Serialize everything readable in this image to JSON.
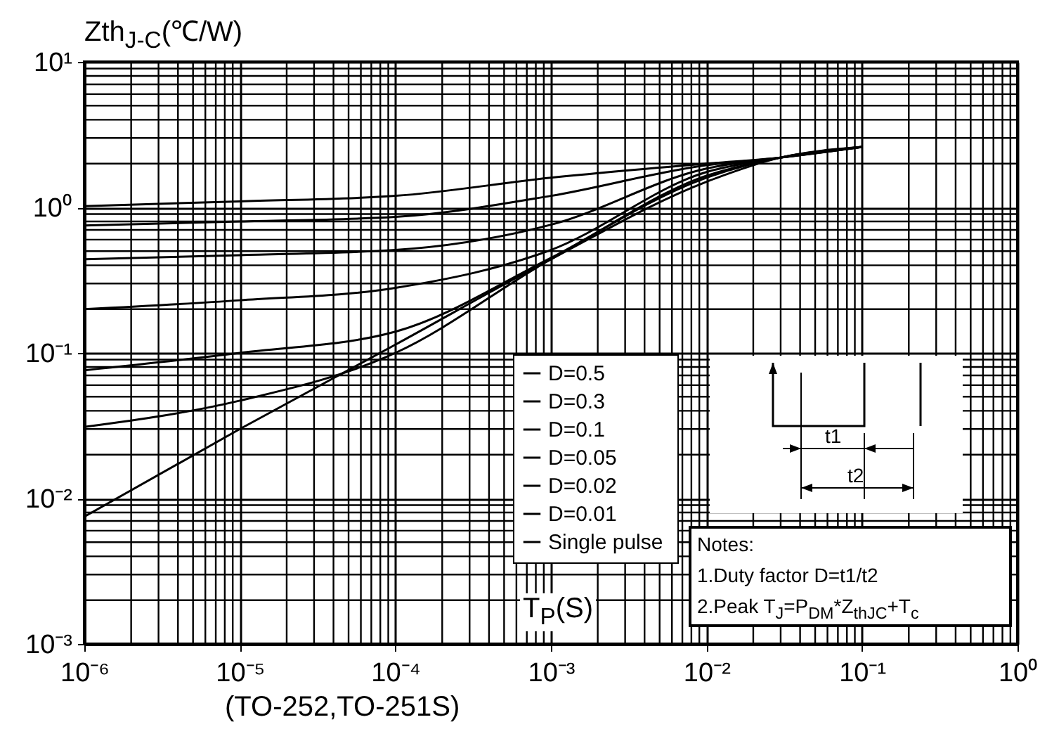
{
  "chart_data": {
    "type": "line",
    "ylabel": "Zth$_{J-C}$(℃/W)",
    "xlabel": "T$_{P}$(S)",
    "annotations": [
      "Notes:",
      "1.Duty factor D=t1/t2",
      "2.Peak  T$_{J}$=P$_{DM}$*Z$_{thJC}$+T$_{c}$",
      "t1",
      "t2",
      "(TO-252,TO-251S)"
    ],
    "log": "xy",
    "grid": true,
    "legend": "bottom",
    "line_style": "solid",
    "marker": "none",
    "xlim": [
      1e-06,
      1
    ],
    "ylim": [
      0.001,
      10
    ],
    "xticks": [
      {
        "value": 1e-06,
        "label": "10⁻⁶"
      },
      {
        "value": 1e-05,
        "label": "10⁻⁵"
      },
      {
        "value": 0.0001,
        "label": "10⁻⁴"
      },
      {
        "value": 0.001,
        "label": "10⁻³"
      },
      {
        "value": 0.01,
        "label": "10⁻²"
      },
      {
        "value": 0.1,
        "label": "10⁻¹"
      },
      {
        "value": 1,
        "label": "10⁰"
      }
    ],
    "yticks": [
      {
        "value": 0.001,
        "label": "10⁻³"
      },
      {
        "value": 0.01,
        "label": "10⁻²"
      },
      {
        "value": 0.1,
        "label": "10⁻¹"
      },
      {
        "value": 1,
        "label": "10⁰"
      },
      {
        "value": 10,
        "label": "10¹"
      }
    ],
    "x": [
      1e-06,
      1e-05,
      0.0001,
      0.001,
      0.01,
      0.03,
      0.1
    ],
    "series": [
      {
        "name": "D=0.5",
        "color": "#000000",
        "values": [
          1.02,
          1.1,
          1.2,
          1.6,
          2.0,
          2.2,
          2.6
        ]
      },
      {
        "name": "D=0.3",
        "color": "#000000",
        "values": [
          0.75,
          0.8,
          0.86,
          1.2,
          1.95,
          2.2,
          2.6
        ]
      },
      {
        "name": "D=0.1",
        "color": "#000000",
        "values": [
          0.44,
          0.47,
          0.51,
          0.76,
          1.85,
          2.2,
          2.6
        ]
      },
      {
        "name": "D=0.05",
        "color": "#000000",
        "values": [
          0.2,
          0.23,
          0.28,
          0.51,
          1.75,
          2.2,
          2.6
        ]
      },
      {
        "name": "D=0.02",
        "color": "#000000",
        "values": [
          0.076,
          0.1,
          0.14,
          0.45,
          1.65,
          2.2,
          2.6
        ]
      },
      {
        "name": "D=0.01",
        "color": "#000000",
        "values": [
          0.031,
          0.047,
          0.1,
          0.44,
          1.6,
          2.2,
          2.6
        ]
      },
      {
        "name": "Single  pulse",
        "color": "#000000",
        "values": [
          0.0075,
          0.03,
          0.114,
          0.44,
          1.5,
          2.2,
          2.6
        ]
      }
    ]
  }
}
